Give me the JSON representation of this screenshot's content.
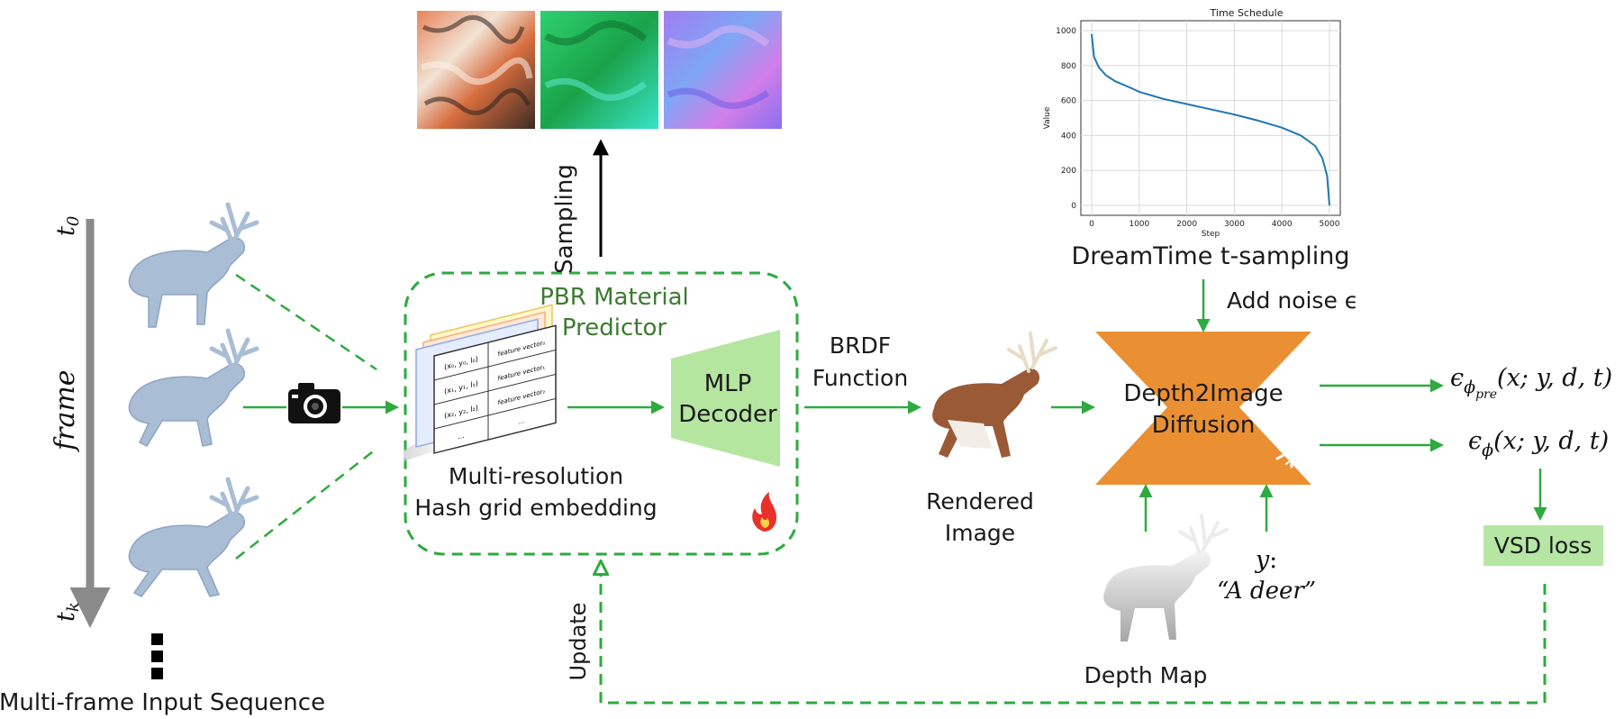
{
  "input": {
    "caption": "Multi-frame Input Sequence",
    "t_start": "t",
    "t_start_sub": "0",
    "frame_axis": "frame",
    "t_end": "t",
    "t_end_sub": "k"
  },
  "predictor": {
    "title_line1": "PBR Material",
    "title_line2": "Predictor",
    "hash_line1": "Multi-resolution",
    "hash_line2": "Hash grid embedding",
    "mlp_line1": "MLP",
    "mlp_line2": "Decoder",
    "table_cells": [
      [
        "(x₀, y₀, l₀)",
        "feature vector₀"
      ],
      [
        "(x₁, y₁, l₁)",
        "feature vector₁"
      ],
      [
        "(x₂, y₂, l₂)",
        "feature vector₂"
      ],
      [
        "...",
        "..."
      ]
    ]
  },
  "labels": {
    "sampling": "Sampling",
    "update": "Update",
    "brdf_line1": "BRDF",
    "brdf_line2": "Function",
    "rendered_line1": "Rendered",
    "rendered_line2": "Image",
    "add_noise": "Add noise ϵ",
    "diffusion_line1": "Depth2Image",
    "diffusion_line2": "Diffusion",
    "depth_map": "Depth Map",
    "prompt_var": "y",
    "prompt_text": "“A deer”",
    "vsd_loss": "VSD loss",
    "eps_pre": "ϵ",
    "eps_pre_sub": "ϕ",
    "eps_pre_subsub": "pre",
    "eps_args": "(x; y, d, t)",
    "eps_phi": "ϵ",
    "eps_phi_sub": "ϕ",
    "dreamtime": "DreamTime t-sampling"
  },
  "chart_data": {
    "type": "line",
    "title": "Time Schedule",
    "xlabel": "Step",
    "ylabel": "Value",
    "xlim": [
      0,
      5000
    ],
    "ylim": [
      0,
      1000
    ],
    "xticks": [
      0,
      1000,
      2000,
      3000,
      4000,
      5000
    ],
    "yticks": [
      0,
      200,
      400,
      600,
      800,
      1000
    ],
    "grid": true,
    "series": [
      {
        "x": [
          0,
          50,
          150,
          300,
          500,
          800,
          1000,
          1500,
          2000,
          2500,
          3000,
          3500,
          4000,
          4400,
          4700,
          4850,
          4950,
          5000
        ],
        "y": [
          980,
          850,
          790,
          745,
          710,
          675,
          650,
          610,
          580,
          550,
          520,
          485,
          445,
          400,
          340,
          270,
          170,
          0
        ]
      }
    ]
  },
  "colors": {
    "green_line": "#2eaa3f",
    "mlp_fill": "#b4e6a0",
    "diffusion_fill": "#ea9033",
    "vsd_fill": "#b6e6a4",
    "predictor_title": "#3d7a31",
    "deer_mesh": "#a9bdd5"
  }
}
